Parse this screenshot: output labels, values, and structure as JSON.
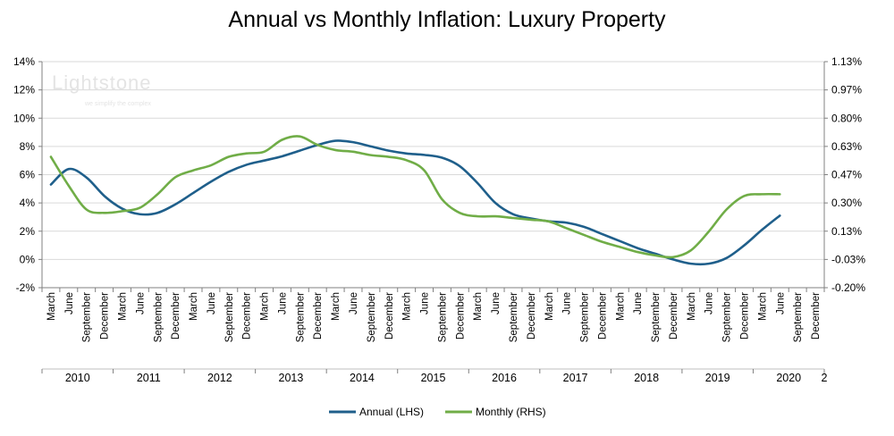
{
  "chart_data": {
    "type": "line",
    "title": "Annual vs Monthly Inflation: Luxury Property",
    "watermark": {
      "brand": "Lightstone",
      "tagline": "we simplify the complex"
    },
    "x_tick_labels": [
      "March",
      "June",
      "September",
      "December",
      "March",
      "June",
      "September",
      "December",
      "March",
      "June",
      "September",
      "December",
      "March",
      "June",
      "September",
      "December",
      "March",
      "June",
      "September",
      "December",
      "March",
      "June",
      "September",
      "December",
      "March",
      "June",
      "September",
      "December",
      "March",
      "June",
      "September",
      "December",
      "March",
      "June",
      "September",
      "December",
      "March",
      "June",
      "September",
      "December",
      "March",
      "June",
      "September",
      "December"
    ],
    "x_year_labels": [
      "2010",
      "2011",
      "2012",
      "2013",
      "2014",
      "2015",
      "2016",
      "2017",
      "2018",
      "2019",
      "2020",
      "2"
    ],
    "y_left": {
      "ticks": [
        "14%",
        "12%",
        "10%",
        "8%",
        "6%",
        "4%",
        "2%",
        "0%",
        "-2%"
      ],
      "range": [
        -2,
        14
      ]
    },
    "y_right": {
      "ticks": [
        "1.13%",
        "0.97%",
        "0.80%",
        "0.63%",
        "0.47%",
        "0.30%",
        "0.13%",
        "-0.03%",
        "-0.20%"
      ],
      "range": [
        -0.2,
        1.13
      ]
    },
    "gridlines": "horizontal",
    "legend_position": "bottom",
    "series": [
      {
        "name": "Annual (LHS)",
        "axis": "left",
        "color": "#1f5f8b",
        "values": [
          5.3,
          6.4,
          5.8,
          4.5,
          3.6,
          3.2,
          3.3,
          3.9,
          4.7,
          5.5,
          6.2,
          6.7,
          7.0,
          7.3,
          7.7,
          8.1,
          8.4,
          8.3,
          8.0,
          7.7,
          7.5,
          7.4,
          7.2,
          6.6,
          5.4,
          4.0,
          3.2,
          2.9,
          2.7,
          2.6,
          2.3,
          1.8,
          1.3,
          0.8,
          0.4,
          0.0,
          -0.3,
          -0.3,
          0.1,
          1.0,
          2.1,
          3.1
        ]
      },
      {
        "name": "Monthly (RHS)",
        "axis": "right",
        "color": "#70ad47",
        "values": [
          0.57,
          0.4,
          0.26,
          0.24,
          0.25,
          0.27,
          0.35,
          0.45,
          0.49,
          0.52,
          0.57,
          0.59,
          0.6,
          0.67,
          0.69,
          0.64,
          0.61,
          0.6,
          0.58,
          0.57,
          0.55,
          0.49,
          0.32,
          0.24,
          0.22,
          0.22,
          0.21,
          0.2,
          0.19,
          0.15,
          0.11,
          0.07,
          0.04,
          0.01,
          -0.01,
          -0.02,
          0.02,
          0.13,
          0.26,
          0.34,
          0.35,
          0.35
        ]
      }
    ]
  }
}
